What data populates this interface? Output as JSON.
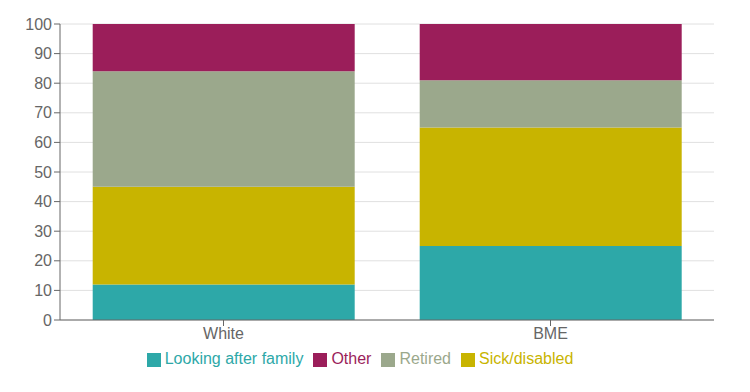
{
  "chart_data": {
    "type": "bar",
    "stacked": true,
    "categories": [
      "White",
      "BME"
    ],
    "series": [
      {
        "name": "Looking after family",
        "color": "#2DA8A8",
        "values": [
          12,
          25
        ]
      },
      {
        "name": "Sick/disabled",
        "color": "#C8B400",
        "values": [
          33,
          40
        ]
      },
      {
        "name": "Retired",
        "color": "#9BA88C",
        "values": [
          39,
          16
        ]
      },
      {
        "name": "Other",
        "color": "#9B1E5A",
        "values": [
          16,
          19
        ]
      }
    ],
    "ylim": [
      0,
      100
    ],
    "yticks": [
      0,
      10,
      20,
      30,
      40,
      50,
      60,
      70,
      80,
      90,
      100
    ],
    "grid": true,
    "legend": "bottom"
  }
}
